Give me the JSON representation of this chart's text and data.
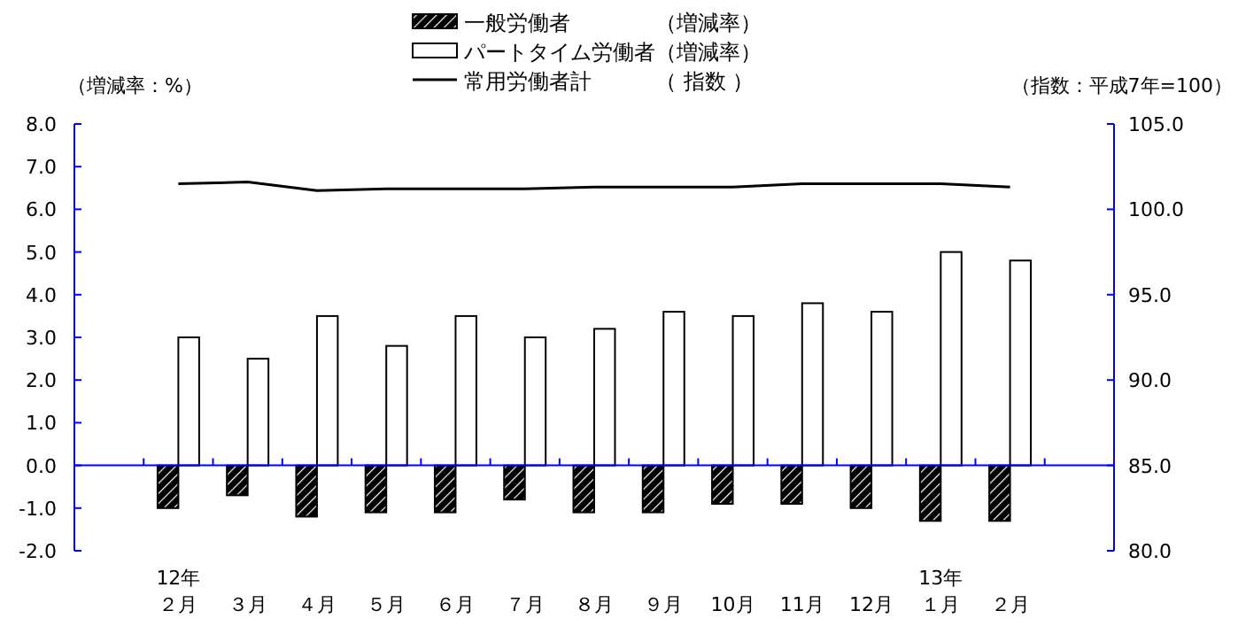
{
  "chart_data": {
    "type": "bar",
    "categories": [
      null,
      "12年２月",
      "３月",
      "４月",
      "５月",
      "６月",
      "７月",
      "８月",
      "９月",
      "10月",
      "11月",
      "12月",
      "13年１月",
      "２月",
      null
    ],
    "ref_lines": [
      {
        "axis": "y",
        "value": 0,
        "color": "#0000ff"
      }
    ],
    "series": [
      {
        "name": "一般労働者　　　　（増減率）",
        "color": "#000000",
        "values": [
          null,
          -1.0,
          -0.7,
          -1.2,
          -1.1,
          -1.1,
          -0.8,
          -1.1,
          -1.1,
          -0.9,
          -0.9,
          -1.0,
          -1.3,
          -1.3,
          null
        ]
      },
      {
        "name": "パートタイム労働者（増減率）",
        "color": "#ffffff",
        "values": [
          null,
          3.0,
          2.5,
          3.5,
          2.8,
          3.5,
          3.0,
          3.2,
          3.6,
          3.5,
          3.8,
          3.6,
          5.0,
          4.8,
          null
        ]
      },
      {
        "name": "常用労働者計　　　（ 指数 ）",
        "type": "line",
        "axis": "y2",
        "color": "#000000",
        "values": [
          null,
          101.5,
          101.6,
          101.1,
          101.2,
          101.2,
          101.2,
          101.3,
          101.3,
          101.3,
          101.5,
          101.5,
          101.5,
          101.3,
          null
        ]
      }
    ],
    "ylabel": "（増減率：%）",
    "y2label": "（指数：平成7年=100）",
    "ylim": [
      -2,
      8
    ],
    "yticks": [
      {
        "value": -2,
        "label": "-2.0"
      },
      {
        "value": -1,
        "label": "-1.0"
      },
      {
        "value": 0,
        "label": "0.0"
      },
      {
        "value": 1,
        "label": "1.0"
      },
      {
        "value": 2,
        "label": "2.0"
      },
      {
        "value": 3,
        "label": "3.0"
      },
      {
        "value": 4,
        "label": "4.0"
      },
      {
        "value": 5,
        "label": "5.0"
      },
      {
        "value": 6,
        "label": "6.0"
      },
      {
        "value": 7,
        "label": "7.0"
      },
      {
        "value": 8,
        "label": "8.0"
      }
    ],
    "y2lim": [
      80,
      105
    ],
    "y2ticks": [
      {
        "value": 80,
        "label": "80.0"
      },
      {
        "value": 85,
        "label": "85.0"
      },
      {
        "value": 90,
        "label": "90.0"
      },
      {
        "value": 95,
        "label": "95.0"
      },
      {
        "value": 100,
        "label": "100.0"
      },
      {
        "value": 105,
        "label": "105.0"
      }
    ],
    "legend": "top",
    "grid": false
  }
}
